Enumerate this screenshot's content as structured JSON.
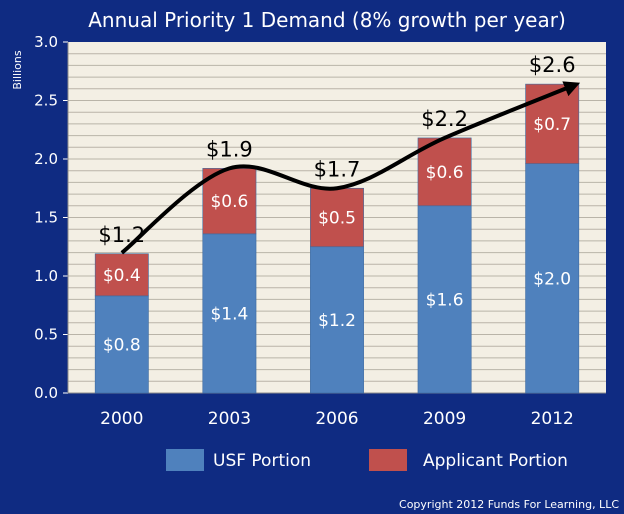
{
  "chart_data": {
    "type": "bar",
    "stacked": true,
    "title": "Annual Priority 1 Demand (8% growth per year)",
    "ylabel": "Billions",
    "xlabel": "",
    "ylim": [
      0,
      3.0
    ],
    "yticks": [
      0.0,
      0.5,
      1.0,
      1.5,
      2.0,
      2.5,
      3.0
    ],
    "ytick_labels": [
      "0.0",
      "0.5",
      "1.0",
      "1.5",
      "2.0",
      "2.5",
      "3.0"
    ],
    "categories": [
      "2000",
      "2003",
      "2006",
      "2009",
      "2012"
    ],
    "series": [
      {
        "name": "USF Portion",
        "color": "#4f81bd",
        "values": [
          0.83,
          1.36,
          1.25,
          1.6,
          1.96
        ],
        "labels": [
          "$0.8",
          "$1.4",
          "$1.2",
          "$1.6",
          "$2.0"
        ]
      },
      {
        "name": "Applicant Portion",
        "color": "#c0504d",
        "values": [
          0.36,
          0.56,
          0.5,
          0.58,
          0.68
        ],
        "labels": [
          "$0.4",
          "$0.6",
          "$0.5",
          "$0.6",
          "$0.7"
        ]
      }
    ],
    "totals": [
      "$1.2",
      "$1.9",
      "$1.7",
      "$2.2",
      "$2.6"
    ],
    "grid": true,
    "legend": "bottom",
    "trend_arrow": true,
    "plot_background": "#f3efe4"
  },
  "copyright": "Copyright 2012 Funds For Learning, LLC"
}
